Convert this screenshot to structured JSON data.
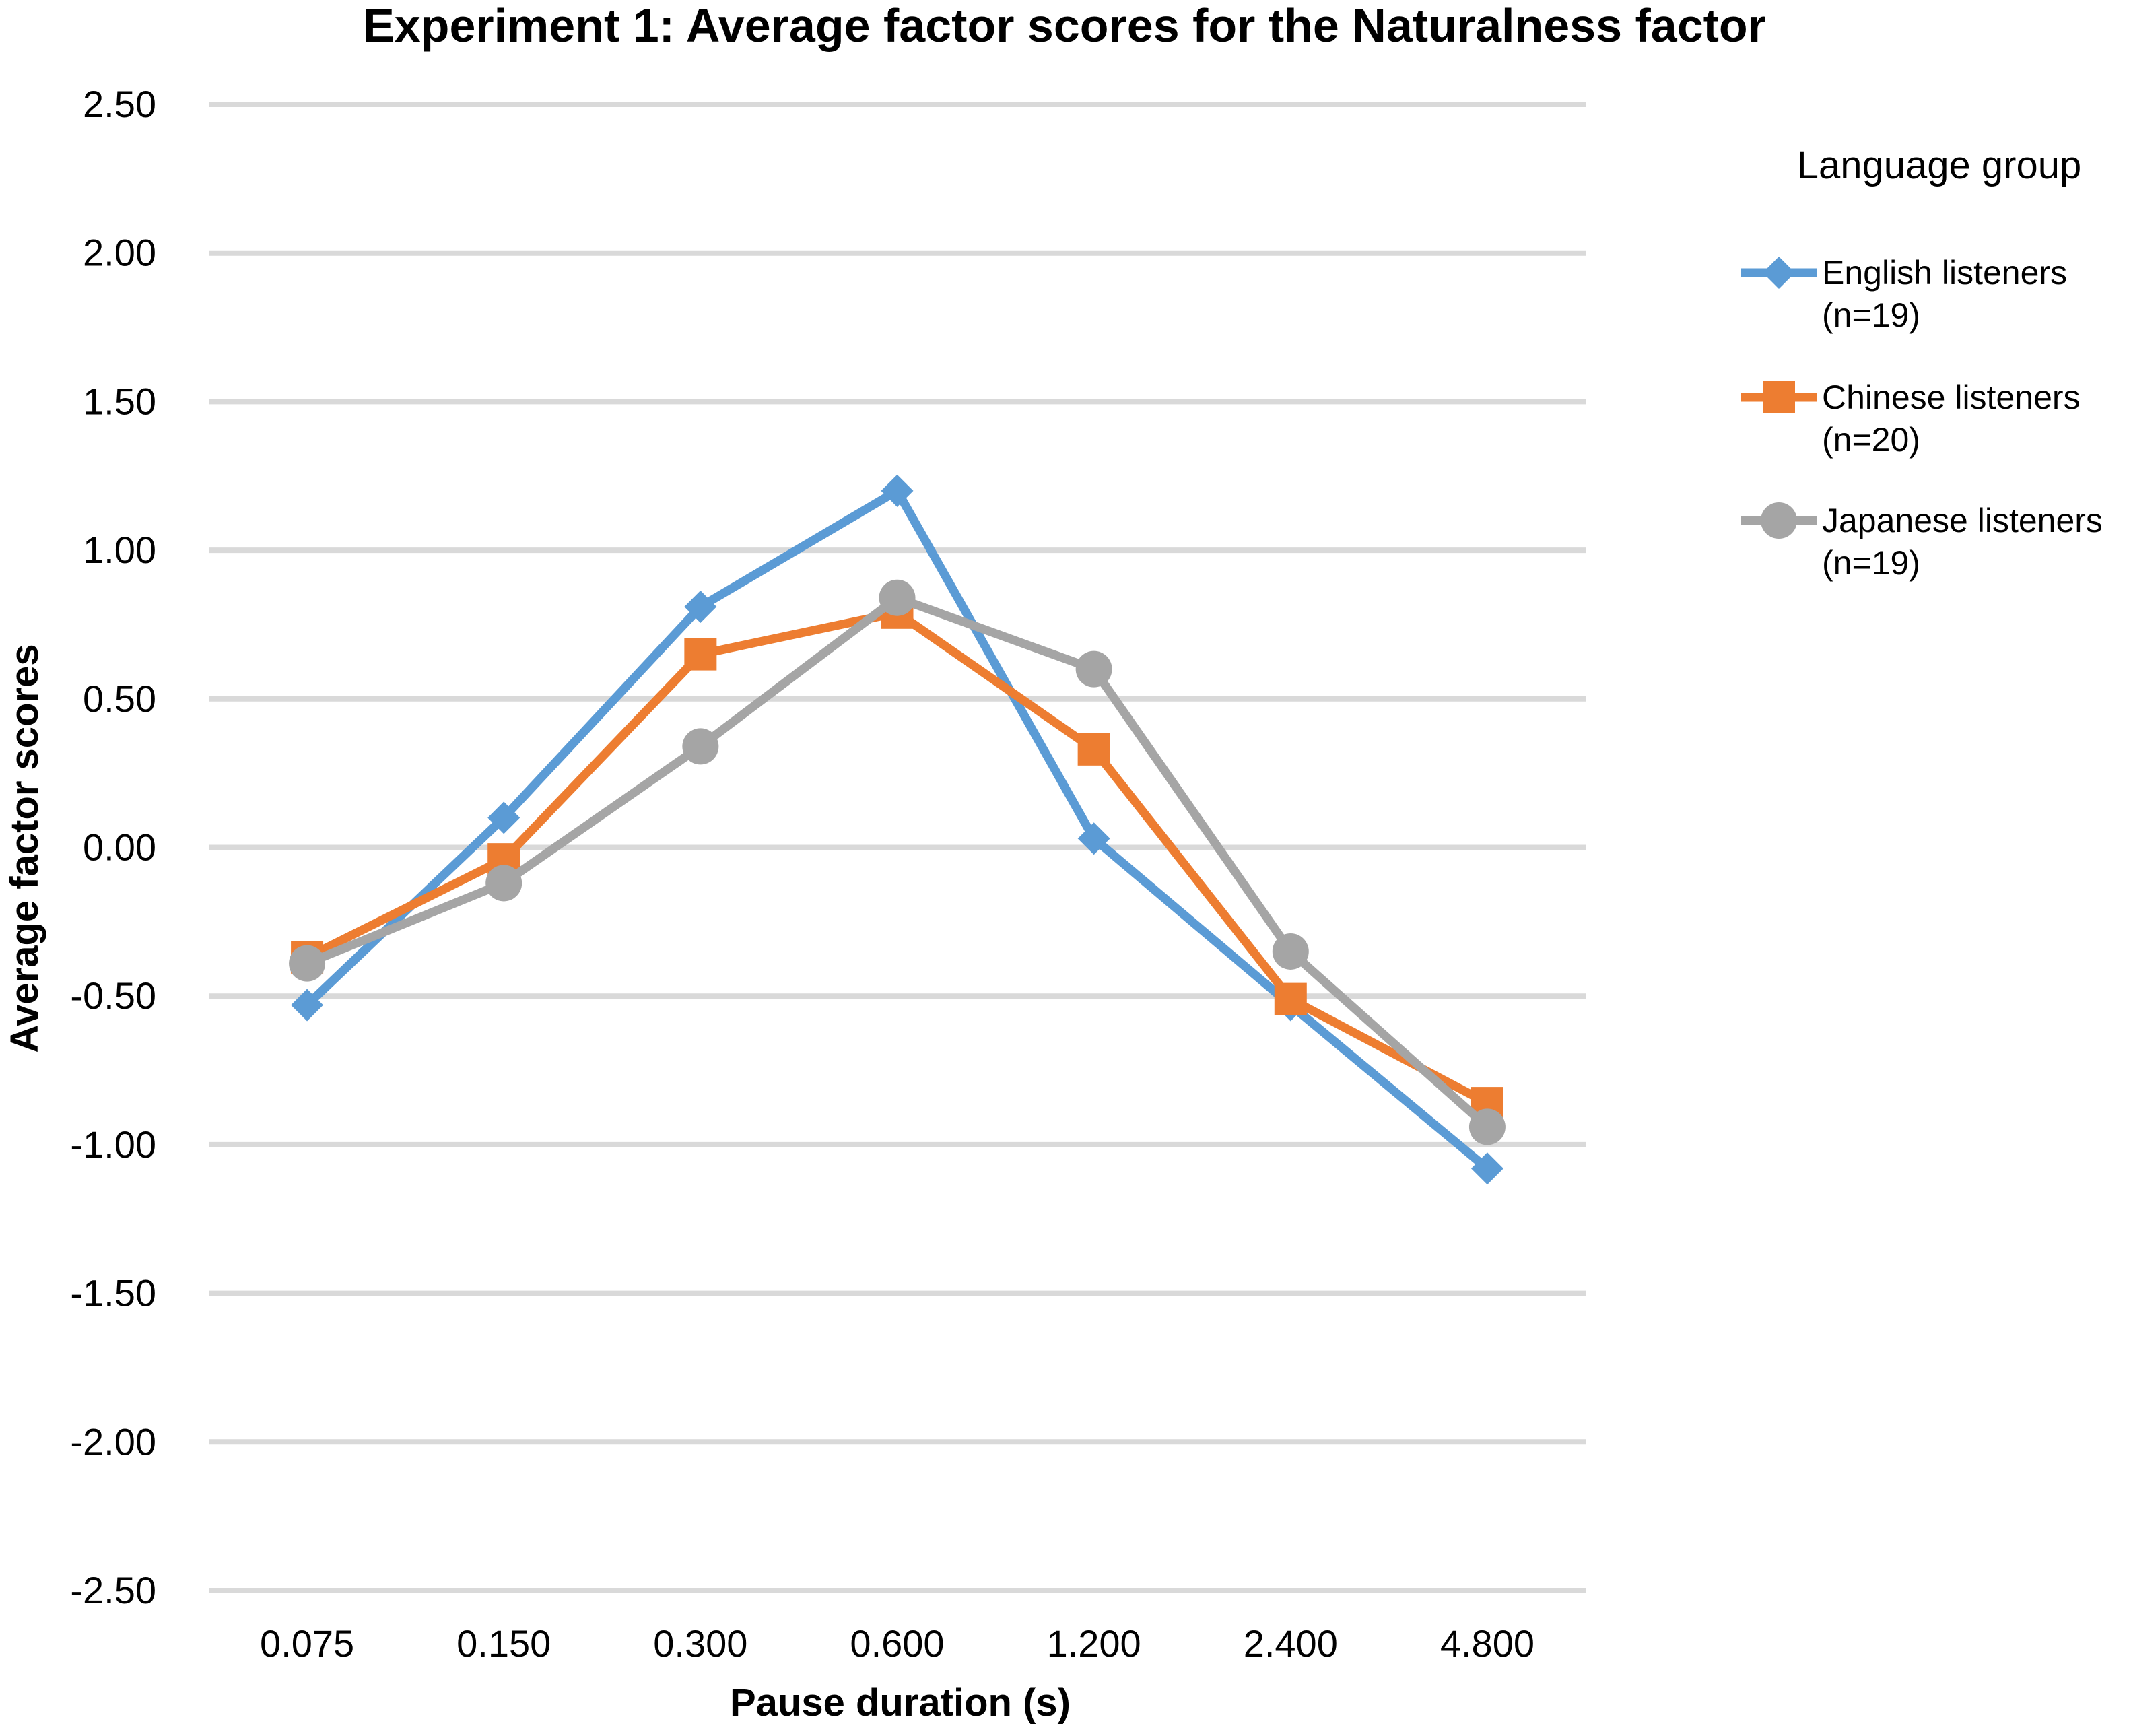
{
  "chart_data": {
    "type": "line",
    "title": "Experiment 1: Average factor scores for the Naturalness factor",
    "xlabel": "Pause duration (s)",
    "ylabel": "Average factor scores",
    "categories": [
      "0.075",
      "0.150",
      "0.300",
      "0.600",
      "1.200",
      "2.400",
      "4.800"
    ],
    "y_ticks": [
      "2.50",
      "2.00",
      "1.50",
      "1.00",
      "0.50",
      "0.00",
      "-0.50",
      "-1.00",
      "-1.50",
      "-2.00",
      "-2.50"
    ],
    "ylim": [
      -2.5,
      2.5
    ],
    "grid": true,
    "legend": {
      "title": "Language group",
      "placement": "right"
    },
    "series": [
      {
        "name": "English listeners",
        "name_line2": "(n=19)",
        "color": "#5b9bd5",
        "marker": "diamond",
        "values": [
          -0.53,
          0.1,
          0.81,
          1.2,
          0.03,
          -0.53,
          -1.08
        ]
      },
      {
        "name": "Chinese listeners",
        "name_line2": "(n=20)",
        "color": "#ed7d31",
        "marker": "square",
        "values": [
          -0.37,
          -0.04,
          0.65,
          0.79,
          0.33,
          -0.51,
          -0.86
        ]
      },
      {
        "name": "Japanese listeners",
        "name_line2": "(n=19)",
        "color": "#a5a5a5",
        "marker": "circle",
        "values": [
          -0.39,
          -0.12,
          0.34,
          0.84,
          0.6,
          -0.35,
          -0.94
        ]
      }
    ]
  }
}
